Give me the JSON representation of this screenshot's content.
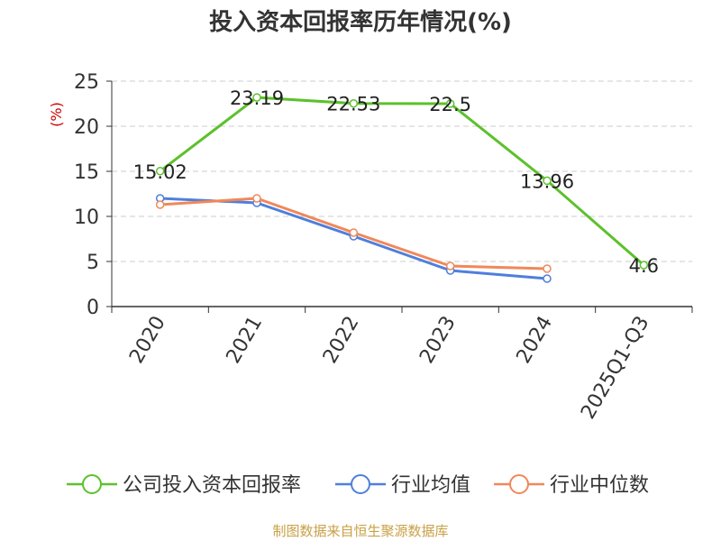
{
  "page_title": "投入资本回报率历年情况(%)",
  "source": "制图数据来自恒生聚源数据库",
  "colors": {
    "company": "#5cc12c",
    "industry_avg": "#4f7fdc",
    "industry_median": "#f0885a",
    "grid": "#cccccc",
    "axis": "#333333",
    "unit": "#cc0000",
    "source": "#c8a046"
  },
  "chart_data": {
    "type": "line",
    "title": "投入资本回报率历年情况(%)",
    "xlabel": "",
    "ylabel": "(%)",
    "categories": [
      "2020",
      "2021",
      "2022",
      "2023",
      "2024",
      "2025Q1-Q3"
    ],
    "ylim": [
      0,
      25
    ],
    "yticks": [
      0,
      5,
      10,
      15,
      20,
      25
    ],
    "grid": true,
    "legend_position": "bottom",
    "series": [
      {
        "name": "公司投入资本回报率",
        "values": [
          15.02,
          23.19,
          22.53,
          22.5,
          13.96,
          4.6
        ],
        "labels": [
          "15.02",
          "23.19",
          "22.53",
          "22.5",
          "13.96",
          "4.6"
        ],
        "color": "#5cc12c"
      },
      {
        "name": "行业均值",
        "values": [
          12.0,
          11.5,
          7.8,
          4.0,
          3.1,
          null
        ],
        "color": "#4f7fdc"
      },
      {
        "name": "行业中位数",
        "values": [
          11.3,
          12.0,
          8.2,
          4.5,
          4.2,
          null
        ],
        "color": "#f0885a"
      }
    ]
  }
}
